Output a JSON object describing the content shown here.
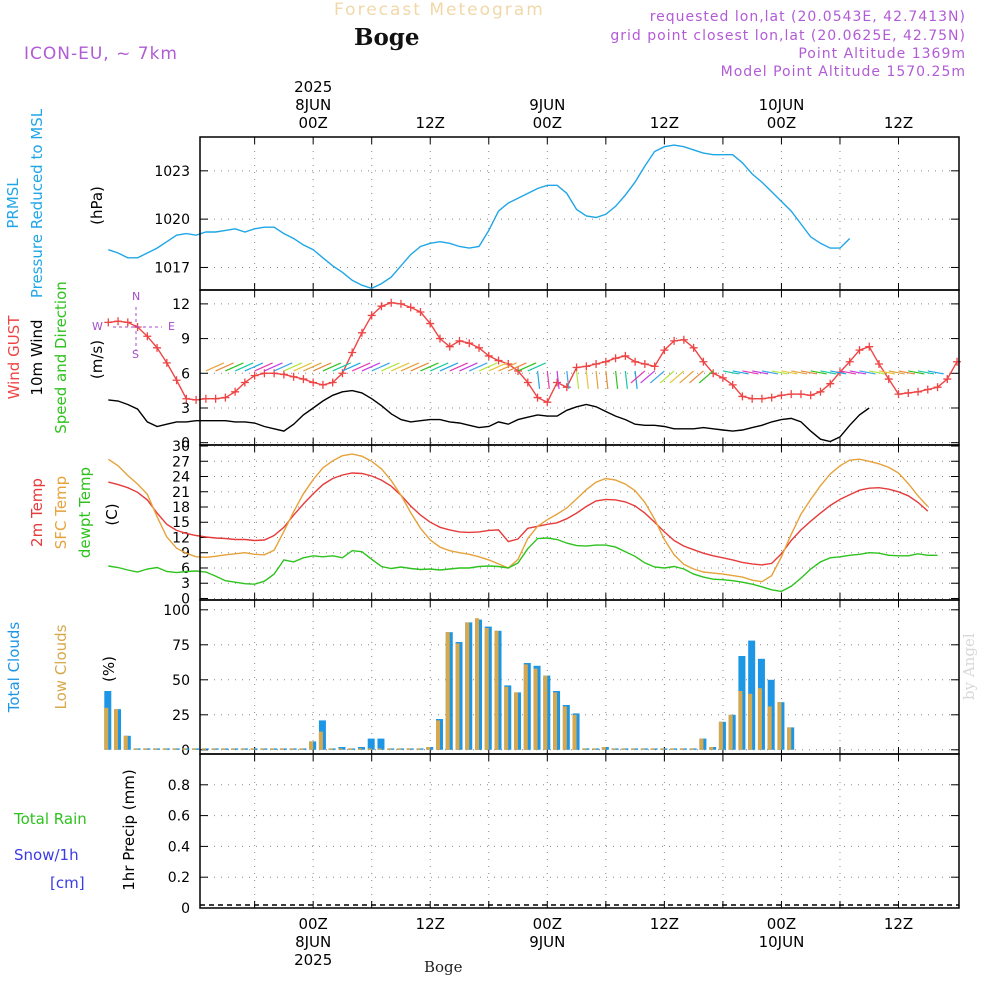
{
  "header": {
    "supertitle": "Forecast Meteogram",
    "location": "Boge",
    "model": "ICON-EU, ~ 7km",
    "requested": "requested lon,lat (20.0543E, 42.7413N)",
    "grid_point": "grid point closest lon,lat (20.0625E, 42.75N)",
    "point_altitude": "Point Altitude 1369m",
    "model_altitude": "Model Point Altitude 1570.25m",
    "footer_location": "Boge",
    "credit": "by Angel"
  },
  "colors": {
    "pressure": "#1fa6e6",
    "gust": "#ef4444",
    "wind": "#000000",
    "temp2m": "#e63b3b",
    "sfc": "#e6a23b",
    "dewpt": "#2ec21e",
    "total_clouds": "#1e96e6",
    "low_clouds": "#d7a84c",
    "rain": "#2ec21e",
    "snow": "#3a3ae6",
    "compass": "#a64ac9"
  },
  "compass": {
    "n": "N",
    "s": "S",
    "e": "E",
    "w": "W"
  },
  "chart_data": [
    {
      "id": "pressure",
      "type": "line",
      "ylabel_lines": [
        "PRMSL",
        "Pressure Reduced to MSL"
      ],
      "unit": "(hPa)",
      "ylim": [
        1015.6,
        1025.1
      ],
      "yticks": [
        1017,
        1020,
        1023
      ],
      "x_hours_start": -21,
      "x_step_hours": 1,
      "series": [
        {
          "name": "PRMSL",
          "values": [
            1018.1,
            1017.9,
            1017.6,
            1017.6,
            1017.9,
            1018.2,
            1018.6,
            1019.0,
            1019.1,
            1019.0,
            1019.2,
            1019.2,
            1019.3,
            1019.4,
            1019.2,
            1019.4,
            1019.5,
            1019.5,
            1019.1,
            1018.8,
            1018.4,
            1018.1,
            1017.6,
            1017.1,
            1016.7,
            1016.2,
            1015.9,
            1015.7,
            1016.0,
            1016.4,
            1017.1,
            1017.8,
            1018.3,
            1018.5,
            1018.6,
            1018.5,
            1018.3,
            1018.2,
            1018.3,
            1019.3,
            1020.5,
            1021.0,
            1021.3,
            1021.6,
            1021.9,
            1022.1,
            1022.1,
            1021.6,
            1020.6,
            1020.2,
            1020.1,
            1020.3,
            1020.8,
            1021.5,
            1022.3,
            1023.3,
            1024.2,
            1024.5,
            1024.6,
            1024.5,
            1024.3,
            1024.1,
            1024.0,
            1024.0,
            1024.0,
            1023.5,
            1022.8,
            1022.3,
            1021.7,
            1021.1,
            1020.5,
            1019.7,
            1018.9,
            1018.5,
            1018.2,
            1018.2,
            1018.8
          ]
        }
      ]
    },
    {
      "id": "wind",
      "type": "line",
      "ylabel_lines": [
        "Wind GUST",
        "10m Wind",
        "Speed and Direction"
      ],
      "unit": "(m/s)",
      "ylim": [
        -0.2,
        13.2
      ],
      "yticks": [
        0,
        3,
        6,
        9,
        12
      ],
      "x_hours_start": -21,
      "x_step_hours": 1,
      "series": [
        {
          "name": "Wind GUST",
          "values": [
            10.4,
            10.5,
            10.4,
            10.0,
            9.2,
            8.2,
            6.9,
            5.4,
            3.8,
            3.7,
            3.8,
            3.8,
            3.9,
            4.4,
            5.2,
            5.8,
            6.0,
            6.0,
            5.9,
            5.7,
            5.5,
            5.2,
            5.0,
            5.2,
            6.0,
            7.8,
            9.5,
            11.0,
            11.8,
            12.1,
            12.0,
            11.7,
            11.3,
            10.3,
            9.0,
            8.3,
            8.8,
            8.6,
            8.2,
            7.5,
            7.1,
            6.8,
            6.2,
            5.2,
            3.9,
            3.5,
            5.2,
            4.8,
            6.5,
            6.6,
            6.8,
            7.0,
            7.3,
            7.5,
            7.0,
            6.8,
            6.6,
            8.0,
            8.8,
            8.9,
            8.2,
            7.0,
            6.0,
            5.6,
            5.0,
            4.0,
            3.8,
            3.8,
            3.9,
            4.1,
            4.2,
            4.2,
            4.1,
            4.4,
            5.1,
            6.1,
            7.0,
            8.0,
            8.3,
            6.8,
            5.5,
            4.2,
            4.3,
            4.4,
            4.6,
            4.8,
            5.5,
            7.0
          ]
        },
        {
          "name": "10m Wind",
          "values": [
            3.7,
            3.6,
            3.3,
            2.9,
            1.8,
            1.4,
            1.6,
            1.8,
            1.8,
            1.9,
            1.9,
            1.9,
            1.9,
            1.8,
            1.8,
            1.7,
            1.4,
            1.2,
            1.0,
            1.6,
            2.4,
            3.0,
            3.6,
            4.1,
            4.4,
            4.5,
            4.3,
            3.8,
            3.2,
            2.5,
            2.0,
            1.8,
            1.9,
            2.0,
            2.0,
            1.8,
            1.7,
            1.5,
            1.3,
            1.4,
            1.8,
            1.6,
            2.0,
            2.2,
            2.4,
            2.3,
            2.3,
            2.8,
            3.1,
            3.3,
            3.1,
            2.7,
            2.3,
            2.0,
            1.6,
            1.5,
            1.5,
            1.4,
            1.2,
            1.2,
            1.2,
            1.3,
            1.2,
            1.1,
            1.0,
            1.1,
            1.3,
            1.5,
            1.8,
            2.0,
            2.1,
            1.8,
            1.0,
            0.3,
            0.1,
            0.5,
            1.5,
            2.4,
            3.0
          ]
        }
      ]
    },
    {
      "id": "temperature",
      "type": "line",
      "ylabel_lines": [
        "2m Temp",
        "SFC Temp",
        "dewpt Temp"
      ],
      "unit": "(C)",
      "ylim": [
        -0.3,
        30.2
      ],
      "yticks": [
        0,
        3,
        6,
        9,
        12,
        15,
        18,
        21,
        24,
        27,
        30
      ],
      "x_hours_start": -21,
      "x_step_hours": 1,
      "series": [
        {
          "name": "2m Temp",
          "values": [
            22.9,
            22.4,
            21.8,
            20.9,
            19.4,
            16.8,
            14.6,
            13.4,
            12.8,
            12.4,
            12.1,
            11.9,
            11.8,
            11.6,
            11.6,
            11.4,
            11.5,
            12.4,
            14.0,
            16.4,
            18.6,
            20.6,
            22.4,
            23.6,
            24.3,
            24.7,
            24.6,
            24.1,
            23.3,
            22.1,
            20.3,
            18.2,
            16.4,
            15.0,
            14.0,
            13.5,
            13.1,
            13.0,
            13.1,
            13.4,
            13.5,
            11.2,
            11.7,
            13.8,
            14.2,
            14.6,
            14.9,
            15.7,
            16.8,
            18.1,
            19.2,
            19.5,
            19.4,
            19.0,
            18.2,
            16.8,
            15.0,
            13.1,
            11.4,
            10.3,
            9.6,
            8.9,
            8.4,
            8.0,
            7.6,
            7.1,
            6.8,
            6.6,
            6.9,
            8.8,
            11.4,
            13.5,
            15.2,
            16.8,
            18.3,
            19.5,
            20.4,
            21.3,
            21.7,
            21.8,
            21.5,
            21.0,
            20.2,
            18.9,
            17.2
          ]
        },
        {
          "name": "SFC Temp",
          "values": [
            27.4,
            26.1,
            24.2,
            22.5,
            20.5,
            16.1,
            12.1,
            9.9,
            8.9,
            8.2,
            8.1,
            8.3,
            8.6,
            8.8,
            9.0,
            8.7,
            8.6,
            9.5,
            13.2,
            17.1,
            20.6,
            23.4,
            25.7,
            27.1,
            28.1,
            28.4,
            28.0,
            27.0,
            25.5,
            23.2,
            20.3,
            16.9,
            13.8,
            11.5,
            10.1,
            9.4,
            9.0,
            8.7,
            8.2,
            7.6,
            6.8,
            6.0,
            7.7,
            11.8,
            14.2,
            15.5,
            16.6,
            17.8,
            19.6,
            21.4,
            22.9,
            23.6,
            23.3,
            22.5,
            21.2,
            18.9,
            15.6,
            11.6,
            8.6,
            6.7,
            5.8,
            5.2,
            5.0,
            4.8,
            4.5,
            4.2,
            3.6,
            3.3,
            4.5,
            8.2,
            12.6,
            16.6,
            19.5,
            22.2,
            24.5,
            26.1,
            27.2,
            27.4,
            27.0,
            26.5,
            25.8,
            24.7,
            22.6,
            20.2,
            18.1
          ]
        },
        {
          "name": "dewpt Temp",
          "values": [
            6.4,
            6.1,
            5.6,
            5.2,
            5.8,
            6.1,
            5.3,
            5.1,
            5.3,
            5.4,
            5.2,
            4.4,
            3.5,
            3.2,
            2.9,
            2.8,
            3.4,
            4.8,
            7.6,
            7.2,
            8.0,
            8.4,
            8.2,
            8.4,
            8.0,
            9.4,
            9.2,
            7.7,
            6.3,
            5.9,
            6.2,
            5.9,
            5.7,
            5.8,
            5.6,
            5.8,
            6.0,
            6.0,
            6.3,
            6.4,
            6.3,
            6.0,
            7.0,
            9.8,
            11.8,
            11.9,
            11.6,
            10.9,
            10.4,
            10.3,
            10.5,
            10.5,
            10.1,
            9.2,
            8.3,
            7.0,
            6.2,
            6.0,
            6.3,
            5.8,
            4.8,
            4.2,
            3.8,
            3.7,
            3.5,
            3.2,
            2.8,
            2.3,
            1.7,
            1.4,
            2.4,
            4.0,
            5.8,
            7.2,
            8.0,
            8.2,
            8.5,
            8.7,
            9.0,
            8.9,
            8.5,
            8.4,
            8.4,
            8.8,
            8.5,
            8.5
          ]
        }
      ]
    },
    {
      "id": "clouds",
      "type": "bar",
      "ylabel_lines": [
        "Total Clouds",
        "Low Clouds"
      ],
      "unit": "(%)",
      "ylim": [
        -3,
        107
      ],
      "yticks": [
        0,
        25,
        50,
        75,
        100
      ],
      "x_hours_start": -21,
      "x_step_hours": 1,
      "series": [
        {
          "name": "Total Clouds",
          "values": [
            42,
            29,
            10,
            1,
            1,
            1,
            1,
            1,
            1,
            1,
            1,
            1,
            1,
            1,
            1,
            1,
            1,
            1,
            1,
            1,
            1,
            6,
            21,
            1,
            2,
            1,
            2,
            8,
            8,
            1,
            1,
            1,
            1,
            2,
            22,
            84,
            77,
            91,
            93,
            88,
            85,
            46,
            41,
            62,
            60,
            53,
            42,
            32,
            26,
            1,
            1,
            2,
            1,
            1,
            1,
            1,
            1,
            1,
            1,
            1,
            1,
            8,
            2,
            20,
            25,
            67,
            78,
            65,
            50,
            34,
            16
          ]
        },
        {
          "name": "Low Clouds",
          "values": [
            30,
            29,
            10,
            1,
            1,
            1,
            1,
            1,
            1,
            1,
            1,
            1,
            1,
            1,
            1,
            1,
            1,
            1,
            1,
            1,
            1,
            6,
            13,
            1,
            1,
            1,
            1,
            1,
            1,
            1,
            1,
            1,
            1,
            2,
            21,
            84,
            76,
            91,
            94,
            87,
            85,
            45,
            41,
            61,
            58,
            53,
            41,
            31,
            25,
            1,
            1,
            2,
            1,
            1,
            1,
            1,
            1,
            1,
            1,
            1,
            1,
            8,
            2,
            20,
            25,
            42,
            40,
            44,
            31,
            34,
            16
          ]
        }
      ]
    },
    {
      "id": "precip",
      "type": "bar",
      "ylabel_lines": [
        "Total  Rain",
        "Snow/1h",
        "[cm]"
      ],
      "unit": "1hr Precip (mm)",
      "ylim": [
        0,
        1.0
      ],
      "yticks": [
        0,
        0.2,
        0.4,
        0.6,
        0.8
      ],
      "ytick_labels": [
        "0",
        "0.2",
        "0.4",
        "0.6",
        "0.8"
      ],
      "series": [
        {
          "name": "Total Rain",
          "values": []
        },
        {
          "name": "Snow/1h",
          "values": []
        }
      ]
    }
  ],
  "x_axis": {
    "top": {
      "labels": [
        "00Z",
        "12Z",
        "00Z",
        "12Z",
        "00Z",
        "12Z"
      ],
      "label_hours": [
        0,
        12,
        24,
        36,
        48,
        60
      ],
      "dates": [
        {
          "hour": 0,
          "line1": "2025",
          "line2": "8JUN"
        },
        {
          "hour": 24,
          "line1": "",
          "line2": "9JUN"
        },
        {
          "hour": 48,
          "line1": "",
          "line2": "10JUN"
        }
      ]
    },
    "bottom": {
      "labels": [
        "00Z",
        "12Z",
        "00Z",
        "12Z",
        "00Z",
        "12Z"
      ],
      "label_hours": [
        0,
        12,
        24,
        36,
        48,
        60
      ],
      "dates": [
        {
          "hour": 0,
          "line1": "8JUN",
          "line2": "2025"
        },
        {
          "hour": 24,
          "line1": "9JUN",
          "line2": ""
        },
        {
          "hour": 48,
          "line1": "10JUN",
          "line2": ""
        }
      ]
    },
    "range_hours": [
      -11.6,
      66.2
    ]
  }
}
